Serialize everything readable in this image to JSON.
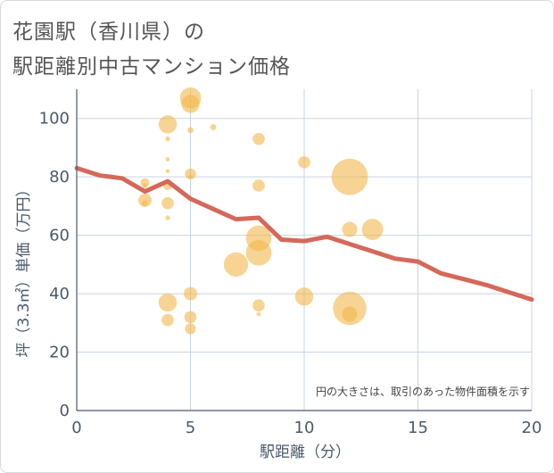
{
  "title_line1": "花園駅（香川県）の",
  "title_line2": "駅距離別中古マンション価格",
  "chart_data": {
    "type": "scatter",
    "xlabel": "駅距離（分）",
    "ylabel": "坪（3.3㎡）単価（万円）",
    "xlim": [
      0,
      20
    ],
    "ylim": [
      0,
      110
    ],
    "x_ticks": [
      "0",
      "5",
      "10",
      "15",
      "20"
    ],
    "y_ticks": [
      "0",
      "20",
      "40",
      "60",
      "80",
      "100"
    ],
    "grid": true,
    "note": "円の大きさは、取引のあった物件面積を示す",
    "bubble_color": "#f2b84b",
    "line_color": "#d4695a",
    "points": [
      {
        "x": 3,
        "y": 78,
        "size": 1.5
      },
      {
        "x": 3,
        "y": 77,
        "size": 0.8
      },
      {
        "x": 3,
        "y": 72,
        "size": 2.2
      },
      {
        "x": 3,
        "y": 71,
        "size": 1.0
      },
      {
        "x": 4,
        "y": 98,
        "size": 3.0
      },
      {
        "x": 4,
        "y": 93,
        "size": 0.8
      },
      {
        "x": 4,
        "y": 86,
        "size": 0.7
      },
      {
        "x": 4,
        "y": 82,
        "size": 0.7
      },
      {
        "x": 4,
        "y": 77,
        "size": 1.5
      },
      {
        "x": 4,
        "y": 71,
        "size": 2.0
      },
      {
        "x": 4,
        "y": 66,
        "size": 0.8
      },
      {
        "x": 4,
        "y": 37,
        "size": 3.0
      },
      {
        "x": 4,
        "y": 31,
        "size": 2.0
      },
      {
        "x": 5,
        "y": 107,
        "size": 3.5
      },
      {
        "x": 5,
        "y": 105,
        "size": 3.0
      },
      {
        "x": 5,
        "y": 96,
        "size": 1.0
      },
      {
        "x": 5,
        "y": 81,
        "size": 1.8
      },
      {
        "x": 5,
        "y": 80,
        "size": 0.7
      },
      {
        "x": 5,
        "y": 40,
        "size": 2.2
      },
      {
        "x": 5,
        "y": 32,
        "size": 2.0
      },
      {
        "x": 5,
        "y": 28,
        "size": 1.8
      },
      {
        "x": 6,
        "y": 97,
        "size": 1.0
      },
      {
        "x": 7,
        "y": 50,
        "size": 4.0
      },
      {
        "x": 8,
        "y": 93,
        "size": 2.0
      },
      {
        "x": 8,
        "y": 77,
        "size": 2.0
      },
      {
        "x": 8,
        "y": 59,
        "size": 4.2
      },
      {
        "x": 8,
        "y": 54,
        "size": 4.2
      },
      {
        "x": 8,
        "y": 36,
        "size": 2.0
      },
      {
        "x": 8,
        "y": 33,
        "size": 0.7
      },
      {
        "x": 10,
        "y": 85,
        "size": 2.0
      },
      {
        "x": 10,
        "y": 39,
        "size": 3.0
      },
      {
        "x": 12,
        "y": 80,
        "size": 6.0
      },
      {
        "x": 12,
        "y": 62,
        "size": 2.5
      },
      {
        "x": 12,
        "y": 35,
        "size": 5.5
      },
      {
        "x": 12,
        "y": 33,
        "size": 2.5
      },
      {
        "x": 13,
        "y": 62,
        "size": 3.5
      }
    ],
    "trend": {
      "x": [
        0,
        1,
        2,
        3,
        4,
        5,
        6,
        7,
        8,
        9,
        10,
        11,
        12,
        13,
        14,
        15,
        16,
        17,
        18,
        19,
        20
      ],
      "y": [
        83,
        80.5,
        79.5,
        75,
        78.5,
        72.5,
        69,
        65.5,
        66,
        58.5,
        58,
        59.5,
        57,
        54.5,
        52,
        51,
        47,
        45,
        43,
        40.5,
        38
      ]
    }
  }
}
